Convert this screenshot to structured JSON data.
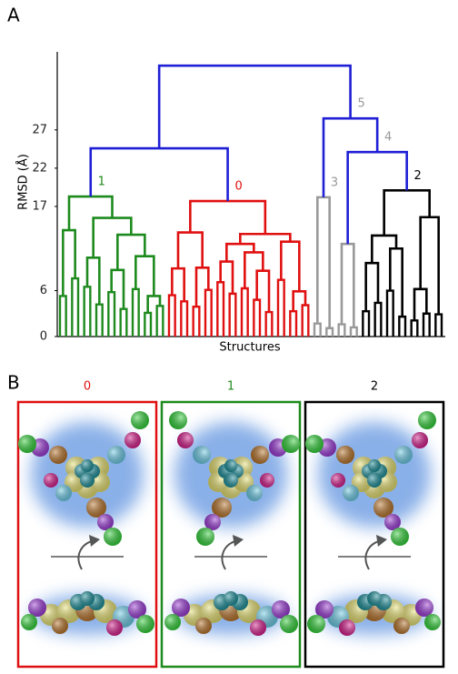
{
  "figure": {
    "panel_labels": [
      "A",
      "B"
    ]
  },
  "chart_data": {
    "type": "dendrogram",
    "y_label": "RMSD (Å)",
    "x_label": "Structures",
    "ylim": [
      0,
      37.2
    ],
    "yticks": [
      0,
      6,
      17,
      22,
      27
    ],
    "tree": {
      "height": 35.4,
      "color": "#1f1fd6",
      "children": [
        {
          "height": 24.6,
          "children": [
            {
              "height": 18.3,
              "label": "1",
              "color": "#1e8a1e",
              "children": [
                {
                  "height": 13.9,
                  "children": [
                    {
                      "height": 5.3
                    },
                    {
                      "height": 7.6
                    }
                  ]
                },
                {
                  "height": 15.5,
                  "children": [
                    {
                      "height": 10.3,
                      "children": [
                        {
                          "height": 6.5
                        },
                        {
                          "height": 4.2
                        }
                      ]
                    },
                    {
                      "height": 13.3,
                      "children": [
                        {
                          "height": 8.7,
                          "children": [
                            {
                              "height": 5.8
                            },
                            {
                              "height": 3.6
                            }
                          ]
                        },
                        {
                          "height": 10.5,
                          "children": [
                            {
                              "height": 6.2
                            },
                            {
                              "height": 5.3,
                              "children": [
                                {
                                  "height": 3.1
                                },
                                {
                                  "height": 4.0
                                }
                              ]
                            }
                          ]
                        }
                      ]
                    }
                  ]
                }
              ]
            },
            {
              "height": 17.7,
              "label": "0",
              "color": "#e01010",
              "children": [
                {
                  "height": 13.6,
                  "children": [
                    {
                      "height": 8.9,
                      "children": [
                        {
                          "height": 5.4
                        },
                        {
                          "height": 4.6
                        }
                      ]
                    },
                    {
                      "height": 9.0,
                      "children": [
                        {
                          "height": 3.9
                        },
                        {
                          "height": 6.1
                        }
                      ]
                    }
                  ]
                },
                {
                  "height": 13.4,
                  "children": [
                    {
                      "height": 12.1,
                      "children": [
                        {
                          "height": 9.8,
                          "children": [
                            {
                              "height": 7.1
                            },
                            {
                              "height": 5.6
                            }
                          ]
                        },
                        {
                          "height": 11.0,
                          "children": [
                            {
                              "height": 6.3
                            },
                            {
                              "height": 8.6,
                              "children": [
                                {
                                  "height": 4.8
                                },
                                {
                                  "height": 3.2
                                }
                              ]
                            }
                          ]
                        }
                      ]
                    },
                    {
                      "height": 12.4,
                      "children": [
                        {
                          "height": 7.4
                        },
                        {
                          "height": 5.9,
                          "children": [
                            {
                              "height": 3.3
                            },
                            {
                              "height": 4.1
                            }
                          ]
                        }
                      ]
                    }
                  ]
                }
              ]
            }
          ]
        },
        {
          "height": 28.5,
          "label": "5",
          "label_color": "#999999",
          "children": [
            {
              "height": 18.2,
              "label": "3",
              "color": "#999999",
              "children": [
                {
                  "height": 1.7
                },
                {
                  "height": 1.1
                }
              ]
            },
            {
              "height": 24.1,
              "label": "4",
              "label_color": "#999999",
              "children": [
                {
                  "height": 12.1,
                  "color": "#999999",
                  "children": [
                    {
                      "height": 1.6
                    },
                    {
                      "height": 1.2
                    }
                  ]
                },
                {
                  "height": 19.1,
                  "label": "2",
                  "color": "#000000",
                  "children": [
                    {
                      "height": 13.2,
                      "children": [
                        {
                          "height": 9.6,
                          "children": [
                            {
                              "height": 3.3
                            },
                            {
                              "height": 4.4
                            }
                          ]
                        },
                        {
                          "height": 11.5,
                          "children": [
                            {
                              "height": 6.0
                            },
                            {
                              "height": 2.6
                            }
                          ]
                        }
                      ]
                    },
                    {
                      "height": 15.6,
                      "children": [
                        {
                          "height": 6.2,
                          "children": [
                            {
                              "height": 2.1
                            },
                            {
                              "height": 3.0
                            }
                          ]
                        },
                        {
                          "height": 2.9
                        }
                      ]
                    }
                  ]
                }
              ]
            }
          ]
        }
      ]
    }
  },
  "structures": {
    "panels": [
      {
        "title": "0",
        "color": "#e01010"
      },
      {
        "title": "1",
        "color": "#1e8a1e"
      },
      {
        "title": "2",
        "color": "#000000"
      }
    ]
  }
}
